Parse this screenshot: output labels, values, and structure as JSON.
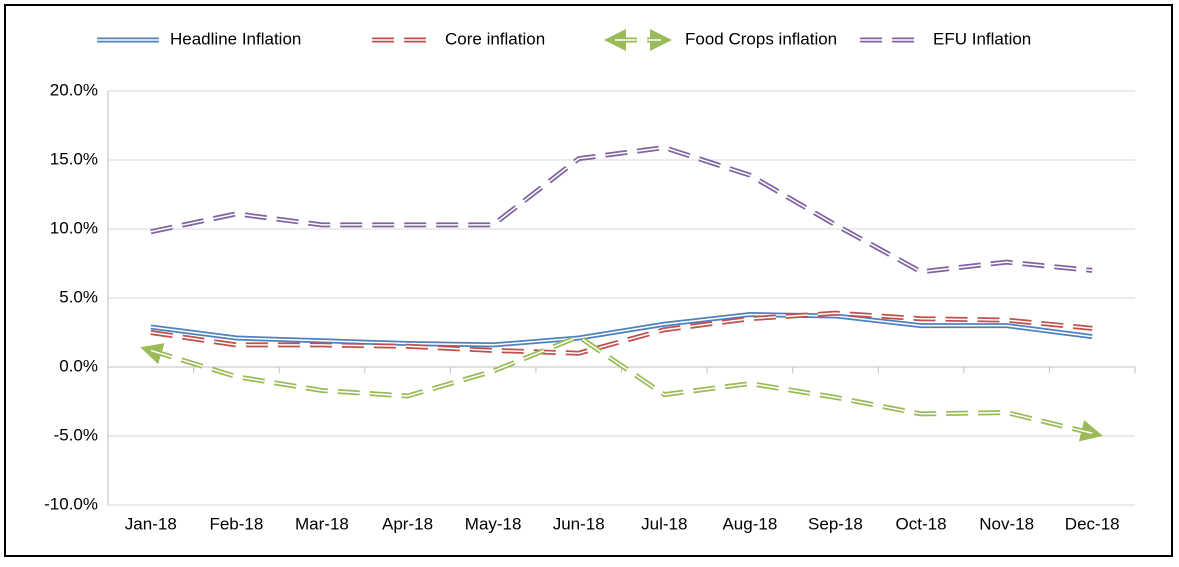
{
  "chart_data": {
    "type": "line",
    "categories": [
      "Jan-18",
      "Feb-18",
      "Mar-18",
      "Apr-18",
      "May-18",
      "Jun-18",
      "Jul-18",
      "Aug-18",
      "Sep-18",
      "Oct-18",
      "Nov-18",
      "Dec-18"
    ],
    "series": [
      {
        "name": "Headline Inflation",
        "color": "#4f81bd",
        "dashed": false,
        "arrows": false,
        "values": [
          2.9,
          2.1,
          1.9,
          1.7,
          1.6,
          2.1,
          3.1,
          3.8,
          3.7,
          3.0,
          3.0,
          2.2
        ]
      },
      {
        "name": "Core inflation",
        "color": "#c0504d",
        "dashed": true,
        "arrows": false,
        "values": [
          2.5,
          1.6,
          1.6,
          1.5,
          1.2,
          1.0,
          2.7,
          3.5,
          3.9,
          3.5,
          3.4,
          2.8
        ]
      },
      {
        "name": "Food Crops inflation",
        "color": "#9bbb59",
        "dashed": true,
        "arrows": true,
        "values": [
          1.2,
          -0.7,
          -1.7,
          -2.1,
          -0.3,
          2.2,
          -2.0,
          -1.2,
          -2.2,
          -3.4,
          -3.3,
          -4.8
        ]
      },
      {
        "name": "EFU Inflation",
        "color": "#8064a2",
        "dashed": true,
        "arrows": false,
        "values": [
          9.8,
          11.1,
          10.3,
          10.3,
          10.3,
          15.1,
          15.9,
          13.9,
          10.3,
          6.9,
          7.6,
          7.0
        ]
      }
    ],
    "ylim": [
      -10,
      20
    ],
    "yticks": [
      {
        "value": -10,
        "label": "-10.0%"
      },
      {
        "value": -5,
        "label": "-5.0%"
      },
      {
        "value": 0,
        "label": "0.0%"
      },
      {
        "value": 5,
        "label": "5.0%"
      },
      {
        "value": 10,
        "label": "10.0%"
      },
      {
        "value": 15,
        "label": "15.0%"
      },
      {
        "value": 20,
        "label": "20.0%"
      }
    ],
    "grid": true,
    "legend": "top"
  }
}
